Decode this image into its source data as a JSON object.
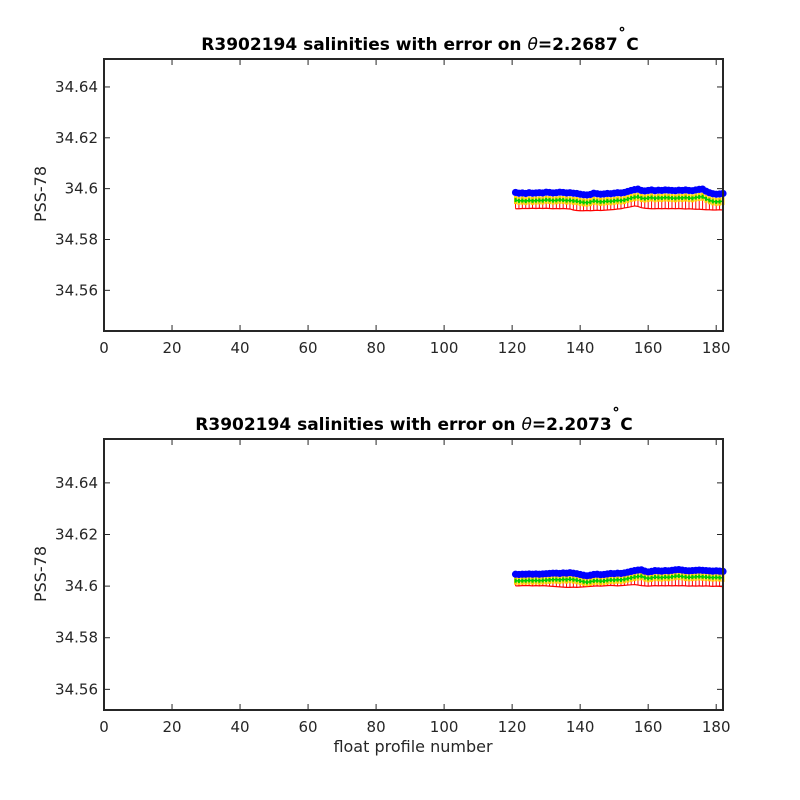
{
  "chart_data": [
    {
      "type": "scatter",
      "title_prefix": "R3902194 salinities with error on ",
      "title_symbol": "θ",
      "title_value": "=2.2687",
      "title_degree": "˚",
      "title_unit": "C",
      "xlabel": "",
      "ylabel": "PSS-78",
      "xlim": [
        0,
        182
      ],
      "ylim": [
        34.544,
        34.651
      ],
      "xticks": [
        0,
        20,
        40,
        60,
        80,
        100,
        120,
        140,
        160,
        180
      ],
      "yticks": [
        34.56,
        34.58,
        34.6,
        34.62,
        34.64
      ],
      "ytick_labels": [
        "34.56",
        "34.58",
        "34.6",
        "34.62",
        "34.64"
      ],
      "x_start": 121,
      "x_end": 182,
      "series": [
        {
          "color": "#0000ff",
          "values": [
            34.5985,
            34.5982,
            34.5983,
            34.5981,
            34.5984,
            34.5982,
            34.5983,
            34.5984,
            34.5983,
            34.5986,
            34.5985,
            34.5983,
            34.5984,
            34.5986,
            34.5985,
            34.5983,
            34.5984,
            34.5982,
            34.5981,
            34.5978,
            34.5976,
            34.5975,
            34.5977,
            34.5982,
            34.598,
            34.5978,
            34.5979,
            34.5981,
            34.598,
            34.5982,
            34.5984,
            34.5983,
            34.5985,
            34.5989,
            34.5993,
            34.5996,
            34.5998,
            34.5993,
            34.5991,
            34.5993,
            34.5995,
            34.5992,
            34.5994,
            34.5993,
            34.5995,
            34.5994,
            34.5993,
            34.5992,
            34.5994,
            34.5993,
            34.5995,
            34.5993,
            34.5992,
            34.5995,
            34.5997,
            34.5998,
            34.599,
            34.5984,
            34.598,
            34.5978,
            34.5979,
            34.5981
          ]
        },
        {
          "color": "#00cc00",
          "values": [
            34.5955,
            34.5952,
            34.5953,
            34.5951,
            34.5954,
            34.5952,
            34.5953,
            34.5954,
            34.5953,
            34.5956,
            34.5955,
            34.5953,
            34.5954,
            34.5956,
            34.5955,
            34.5953,
            34.5954,
            34.5952,
            34.5951,
            34.5948,
            34.5946,
            34.5945,
            34.5947,
            34.5952,
            34.595,
            34.5948,
            34.5949,
            34.5951,
            34.595,
            34.5952,
            34.5954,
            34.5953,
            34.5955,
            34.5959,
            34.5963,
            34.5966,
            34.5968,
            34.5963,
            34.5961,
            34.5963,
            34.5965,
            34.5962,
            34.5964,
            34.5963,
            34.5965,
            34.5964,
            34.5963,
            34.5962,
            34.5964,
            34.5963,
            34.5965,
            34.5963,
            34.5962,
            34.5965,
            34.5967,
            34.5968,
            34.596,
            34.5954,
            34.595,
            34.5948,
            34.5949,
            34.5951
          ]
        },
        {
          "color": "#ff0000",
          "values": [
            34.5921,
            34.5921,
            34.5922,
            34.5922,
            34.5922,
            34.5923,
            34.5922,
            34.5923,
            34.5922,
            34.5923,
            34.5922,
            34.5921,
            34.5922,
            34.5921,
            34.5922,
            34.5921,
            34.592,
            34.5916,
            34.5914,
            34.5913,
            34.5913,
            34.5914,
            34.5913,
            34.5914,
            34.5915,
            34.5914,
            34.5915,
            34.5916,
            34.5917,
            34.5918,
            34.592,
            34.5921,
            34.5924,
            34.5926,
            34.5929,
            34.5932,
            34.593,
            34.5925,
            34.5923,
            34.5922,
            34.5921,
            34.5921,
            34.5922,
            34.5921,
            34.5922,
            34.5921,
            34.5922,
            34.5921,
            34.5922,
            34.5921,
            34.592,
            34.5921,
            34.592,
            34.5919,
            34.5919,
            34.5918,
            34.5917,
            34.5917,
            34.5916,
            34.5916,
            34.5917,
            34.5916
          ]
        }
      ]
    },
    {
      "type": "scatter",
      "title_prefix": "R3902194 salinities with error on ",
      "title_symbol": "θ",
      "title_value": "=2.2073",
      "title_degree": "˚",
      "title_unit": "C",
      "xlabel": "float profile number",
      "ylabel": "PSS-78",
      "xlim": [
        0,
        182
      ],
      "ylim": [
        34.552,
        34.657
      ],
      "xticks": [
        0,
        20,
        40,
        60,
        80,
        100,
        120,
        140,
        160,
        180
      ],
      "yticks": [
        34.56,
        34.58,
        34.6,
        34.62,
        34.64
      ],
      "ytick_labels": [
        "34.56",
        "34.58",
        "34.6",
        "34.62",
        "34.64"
      ],
      "x_start": 121,
      "x_end": 182,
      "series": [
        {
          "color": "#0000ff",
          "values": [
            34.6046,
            34.6045,
            34.6046,
            34.6046,
            34.6047,
            34.6046,
            34.6047,
            34.6046,
            34.6047,
            34.6048,
            34.6049,
            34.605,
            34.605,
            34.6049,
            34.6051,
            34.605,
            34.6052,
            34.605,
            34.6048,
            34.6045,
            34.6042,
            34.604,
            34.6042,
            34.6045,
            34.6046,
            34.6044,
            34.6045,
            34.6047,
            34.6049,
            34.6048,
            34.605,
            34.6049,
            34.6051,
            34.6054,
            34.6057,
            34.606,
            34.6062,
            34.6063,
            34.6058,
            34.6055,
            34.6057,
            34.606,
            34.6059,
            34.6058,
            34.606,
            34.6059,
            34.6061,
            34.6063,
            34.6064,
            34.6062,
            34.606,
            34.6059,
            34.606,
            34.6061,
            34.6062,
            34.6061,
            34.606,
            34.6059,
            34.6058,
            34.6059,
            34.6058,
            34.6057
          ]
        },
        {
          "color": "#00cc00",
          "values": [
            34.6021,
            34.602,
            34.6021,
            34.6021,
            34.6022,
            34.6021,
            34.6022,
            34.6021,
            34.6022,
            34.6023,
            34.6024,
            34.6025,
            34.6025,
            34.6024,
            34.6026,
            34.6025,
            34.6027,
            34.6025,
            34.6023,
            34.602,
            34.6017,
            34.6015,
            34.6017,
            34.602,
            34.6021,
            34.6019,
            34.602,
            34.6022,
            34.6024,
            34.6023,
            34.6025,
            34.6024,
            34.6026,
            34.6029,
            34.6032,
            34.6035,
            34.6037,
            34.6038,
            34.6033,
            34.603,
            34.6032,
            34.6035,
            34.6034,
            34.6033,
            34.6035,
            34.6034,
            34.6036,
            34.6038,
            34.6039,
            34.6037,
            34.6035,
            34.6034,
            34.6035,
            34.6036,
            34.6037,
            34.6036,
            34.6035,
            34.6034,
            34.6033,
            34.6034,
            34.6033,
            34.6032
          ]
        },
        {
          "color": "#ff0000",
          "values": [
            34.6001,
            34.6001,
            34.6002,
            34.6002,
            34.6002,
            34.6001,
            34.6002,
            34.6001,
            34.6002,
            34.6001,
            34.6,
            34.5999,
            34.5998,
            34.5997,
            34.5996,
            34.5995,
            34.5995,
            34.5996,
            34.5995,
            34.5996,
            34.5997,
            34.5998,
            34.5999,
            34.6,
            34.6001,
            34.6,
            34.6001,
            34.6002,
            34.6003,
            34.6002,
            34.6001,
            34.6002,
            34.6003,
            34.6004,
            34.6005,
            34.6006,
            34.6004,
            34.6002,
            34.6001,
            34.6,
            34.6001,
            34.6002,
            34.6001,
            34.6002,
            34.6001,
            34.6002,
            34.6001,
            34.6002,
            34.6001,
            34.6002,
            34.6001,
            34.6,
            34.6001,
            34.6,
            34.6001,
            34.6,
            34.6001,
            34.6,
            34.5999,
            34.6,
            34.5999,
            34.5998
          ]
        }
      ]
    }
  ]
}
